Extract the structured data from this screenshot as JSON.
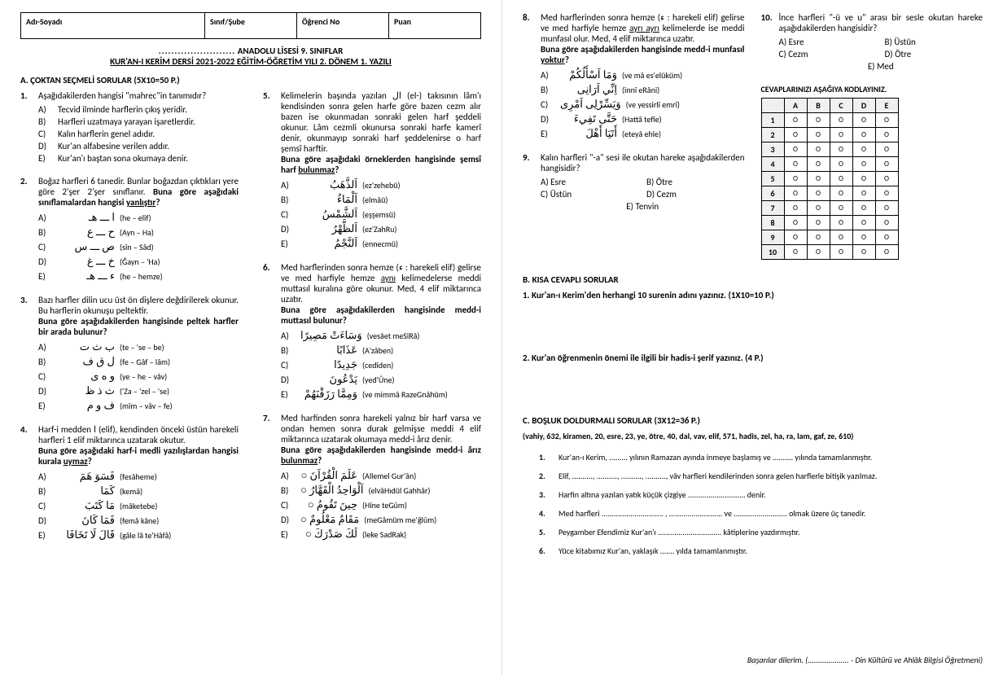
{
  "header": {
    "cells": [
      "Adı-Soyadı",
      "Sınıf/Şube",
      "Öğrenci No",
      "Puan"
    ],
    "title_prefix": "........................",
    "title": "ANADOLU LİSESİ 9. SINIFLAR",
    "subtitle": "KUR'AN-I KERİM DERSİ 2021-2022 EĞİTİM-ÖĞRETİM YILI 2. DÖNEM 1. YAZILI"
  },
  "sectionA": {
    "head": "A.  ÇOKTAN SEÇMELİ SORULAR (5X10=50 P.)",
    "q1": {
      "num": "1.",
      "text": "Aşağıdakilerden hangisi \"mahrec\"in tanımıdır?",
      "opts": [
        "Tecvid ilminde harflerin çıkış yeridir.",
        "Harfleri uzatmaya yarayan işaretlerdir.",
        "Kalın harflerin genel adıdır.",
        "Kur'an alfabesine verilen addır.",
        "Kur'an'ı baştan sona okumaya denir."
      ]
    },
    "q2": {
      "num": "2.",
      "text1": "Boğaz harfleri 6 tanedir. Bunlar boğazdan çıktıkları yere göre 2'şer 2'şer sınıflanır. ",
      "text2": "Buna göre aşağıdaki sınıflamalardan hangisi ",
      "text3": "yanlıştır",
      "text4": "?",
      "opts": [
        {
          "l": "A)",
          "a": "ا ـــ هـ",
          "t": "(he – elif)"
        },
        {
          "l": "B)",
          "a": "ح ـــ ع",
          "t": "(Ayn – Ha)"
        },
        {
          "l": "C)",
          "a": "ص ـــ س",
          "t": "(sîn – Sâd)"
        },
        {
          "l": "D)",
          "a": "خ ـــ غ",
          "t": "(Ğayn – 'Ha)"
        },
        {
          "l": "E)",
          "a": "ء ـــ هـ",
          "t": "(he – hemze)"
        }
      ]
    },
    "q3": {
      "num": "3.",
      "text1": "Bazı harfler dilin ucu üst ön dişlere değdirilerek okunur. Bu harflerin okunuşu peltektir.",
      "text2": "Buna göre aşağıdakilerden hangisinde peltek harfler bir arada bulunur?",
      "opts": [
        {
          "l": "A)",
          "a": "ب ث ت",
          "t": "(te – 'se – be)"
        },
        {
          "l": "B)",
          "a": "ل ق ف",
          "t": "(fe – Gâf – lâm)"
        },
        {
          "l": "C)",
          "a": "و ه ى",
          "t": "(ye – he – vâv)"
        },
        {
          "l": "D)",
          "a": "ث ذ ظ",
          "t": "('Za – 'zel – 'se)"
        },
        {
          "l": "E)",
          "a": "ف و م",
          "t": "(mîm – vâv – fe)"
        }
      ]
    },
    "q4": {
      "num": "4.",
      "text1": "Harf-i medden ا (elif), kendinden önceki üstün harekeli harfleri 1 elif miktarınca uzatarak okutur.",
      "text2": "Buna göre aşağıdaki harf-i medli yazılışlardan hangisi kurala ",
      "text3": "uymaz",
      "text4": "?",
      "opts": [
        {
          "l": "A)",
          "a": "فَسَوَ هَمَ",
          "t": "(fesâheme)"
        },
        {
          "l": "B)",
          "a": "كَمَا",
          "t": "(kemâ)"
        },
        {
          "l": "C)",
          "a": "مَا كَتَبَ",
          "t": "(mâketebe)"
        },
        {
          "l": "D)",
          "a": "فَمَا كَانَ",
          "t": "(femâ kâne)"
        },
        {
          "l": "E)",
          "a": "قَالَ لَا تَخَافَا",
          "t": "(gâle lâ te'Hâfâ)"
        }
      ]
    },
    "q5": {
      "num": "5.",
      "text1": "Kelimelerin başında yazılan ال (el-) takısının lâm'ı kendisinden sonra gelen harfe göre bazen cezm alır bazen ise okunmadan sonraki gelen harf şeddeli okunur. Lâm cezmli okunursa sonraki harfe kamerî denir, okunmayıp sonraki harf şeddelenirse o harf şemsî harftir.",
      "text2": "Buna göre aşağıdaki örneklerden hangisinde şemsî harf ",
      "text3": "bulunmaz",
      "text4": "?",
      "opts": [
        {
          "l": "A)",
          "a": "اَلذَّهَبُ",
          "t": "(ez'zehebü)"
        },
        {
          "l": "B)",
          "a": "اَلْمَاءُ",
          "t": "(elmâü)"
        },
        {
          "l": "C)",
          "a": "اَلشَّمْسُ",
          "t": "(eşşemsü)"
        },
        {
          "l": "D)",
          "a": "اَلظَّهْرُ",
          "t": "(ez'ZahRu)"
        },
        {
          "l": "E)",
          "a": "اَلنَّجْمُ",
          "t": "(ennecmü)"
        }
      ]
    },
    "q6": {
      "num": "6.",
      "text1": "Med harflerinden sonra hemze (ء : harekeli elif) gelirse ve med harfiyle hemze ",
      "text1u": "aynı",
      "text1b": " kelimedelerse meddi muttasıl kuralına göre okunur. Med, 4 elif miktarınca uzatır.",
      "text2": "Buna göre aşağıdakilerden hangisinde medd-i muttasıl bulunur?",
      "opts": [
        {
          "l": "A)",
          "a": "وَسَاءَتْ مَصِيرًا",
          "t": "(vesâet meSîRâ)"
        },
        {
          "l": "B)",
          "a": "عَذَابًا",
          "t": "(A'zâben)"
        },
        {
          "l": "C)",
          "a": "جَدِيدًا",
          "t": "(cedîden)"
        },
        {
          "l": "D)",
          "a": "يَدْعُونَ",
          "t": "(yed'Ûne)"
        },
        {
          "l": "E)",
          "a": "وَمِمَّا رَزَقْنَهُمْ",
          "t": "(ve mimmâ RazeGnâhüm)"
        }
      ]
    },
    "q7": {
      "num": "7.",
      "text1": "Med harfinden sonra harekeli yalnız bir harf varsa ve ondan hemen sonra durak gelmişse meddi 4 elif miktarınca uzatarak okumaya medd-i ârız denir.",
      "text2": "Buna göre aşağıdakilerden hangisinde medd-i ârız ",
      "text3": "bulunmaz",
      "text4": "?",
      "opts": [
        {
          "l": "A)",
          "a": "عَلَمَ الْقُرْاَنَ ○",
          "t": "(Allemel Gur'ân)"
        },
        {
          "l": "B)",
          "a": "اَلْوَاحِدُ الْقَهَّارُ ○",
          "t": "(elvâHıdül Gahhâr)"
        },
        {
          "l": "C)",
          "a": "حِينَ تَقُومُ ○",
          "t": "(Hîne teGûm)"
        },
        {
          "l": "D)",
          "a": "مَقَامٌ مَعْلُومٌ ○",
          "t": "(meGâmüm me'ğlûm)"
        },
        {
          "l": "E)",
          "a": "لَكَ صَدْرَكَ ○",
          "t": "(leke SadRak)"
        }
      ]
    },
    "q8": {
      "num": "8.",
      "text1": "Med harflerinden sonra hemze (ء : harekeli elif) gelirse ve med harfiyle hemze ",
      "text1u": "ayrı ayrı",
      "text1b": " kelimelerde ise meddi munfasıl olur. Med, 4 elif miktarınca uzatır.",
      "text2": "Buna göre aşağıdakilerden hangisinde medd-i munfasıl ",
      "text3": "yoktur",
      "text4": "?",
      "opts": [
        {
          "l": "A)",
          "a": "وَمَا اَسْأَلُكُمْ",
          "t": "(ve mâ es'elüküm)"
        },
        {
          "l": "B)",
          "a": "اِنِّي اَرَانِى",
          "t": "(innî eRâni)"
        },
        {
          "l": "C)",
          "a": "وَيَسِّرْلِى اَمْرِى",
          "t": "(ve yessirlî emrî)"
        },
        {
          "l": "D)",
          "a": "حَتَّى تَفِيءَ",
          "t": "(Hattâ tefîe)"
        },
        {
          "l": "E)",
          "a": "أَتَيَا أَهْلَ",
          "t": "(eteyâ ehle)"
        }
      ]
    },
    "q9": {
      "num": "9.",
      "text": "Kalın harfleri \"-a\" sesi ile okutan hareke aşağıdakilerden hangisidir?",
      "opts": [
        [
          "A) Esre",
          "B) Ötre"
        ],
        [
          "C) Üstün",
          "D) Cezm"
        ]
      ],
      "opt_e": "E) Tenvin"
    },
    "q10": {
      "num": "10.",
      "text": "İnce harfleri \"-ü ve u\" arası bir sesle okutan hareke aşağıdakilerden hangisidir?",
      "opts": [
        [
          "A) Esre",
          "B) Üstün"
        ],
        [
          "C) Cezm",
          "D) Ötre"
        ]
      ],
      "opt_e": "E) Med"
    }
  },
  "grid": {
    "title": "CEVAPLARINIZI AŞAĞIYA KODLAYINIZ.",
    "cols": [
      "A",
      "B",
      "C",
      "D",
      "E"
    ],
    "rows": [
      "1",
      "2",
      "3",
      "4",
      "5",
      "6",
      "7",
      "8",
      "9",
      "10"
    ]
  },
  "sectionB": {
    "head": "B.   KISA CEVAPLI SORULAR",
    "q1": "1.   Kur'an-ı Kerim'den herhangi 10 surenin adını yazınız. (1X10=10 P.)",
    "q2": "2.   Kur'an öğrenmenin önemi ile ilgili bir hadis-i şerif yazınız. (4 P.)"
  },
  "sectionC": {
    "head": "C.   BOŞLUK DOLDURMALI SORULAR (3X12=36 P.)",
    "bank": "(vahiy, 632, kiramen, 20, esre, 23, ye, ötre, 40, dal, vav, elif, 571, hadis, zel, ha, ra, lam, gaf, ze, 610)",
    "items": [
      "Kur'an-ı Kerim, ......... yılının Ramazan ayında inmeye başlamış ve .......... yılında tamamlanmıştır.",
      "Elif, .........., .........., .........., .........., vâv harfleri kendilerinden sonra gelen harflerle bitişik yazılmaz.",
      "Harfin altına yazılan yatık küçük çizgiye ............................ denir.",
      "Med harfleri .............................. , ..........................  ve .......................... olmak üzere üç tanedir.",
      "Peygamber Efendimiz Kur'an'ı ............................... kâtiplerine yazdırmıştır.",
      "Yüce kitabımız Kur'an, yaklaşık ....... yılda tamamlanmıştır."
    ]
  },
  "footer": "Başarılar dilerim. (.................... - Din Kültürü ve Ahlâk Bilgisi Öğretmeni)"
}
